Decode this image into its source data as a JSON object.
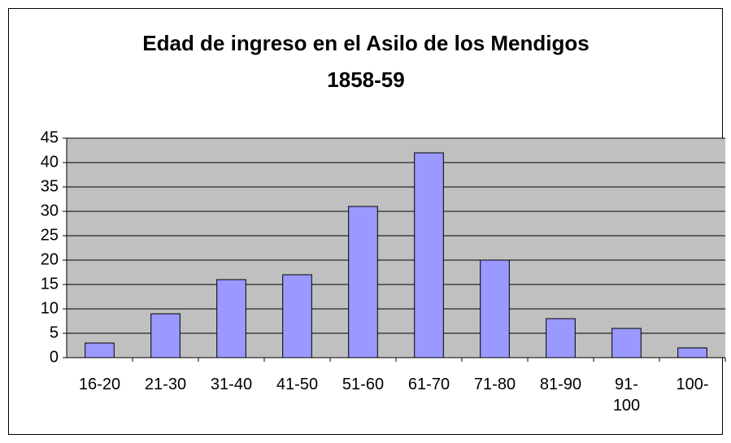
{
  "chart_data": {
    "type": "bar",
    "title": "Edad de ingreso en el Asilo de los Mendigos",
    "subtitle": "1858-59",
    "categories": [
      "16-20",
      "21-30",
      "31-40",
      "41-50",
      "51-60",
      "61-70",
      "71-80",
      "81-90",
      "91-100",
      "100-"
    ],
    "values": [
      3,
      9,
      16,
      17,
      31,
      42,
      20,
      8,
      6,
      2
    ],
    "color": "#9999ff",
    "ylim": [
      0,
      45
    ],
    "yticks": [
      0,
      5,
      10,
      15,
      20,
      25,
      30,
      35,
      40,
      45
    ],
    "grid": true
  }
}
